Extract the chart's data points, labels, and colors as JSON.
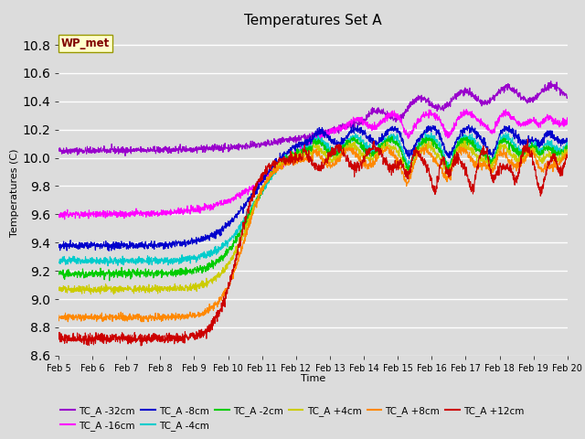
{
  "title": "Temperatures Set A",
  "xlabel": "Time",
  "ylabel": "Temperatures (C)",
  "ylim": [
    8.6,
    10.9
  ],
  "background_color": "#dcdcdc",
  "plot_bg_color": "#dcdcdc",
  "grid_color": "#ffffff",
  "wp_met_label": "WP_met",
  "wp_met_color": "#800000",
  "wp_met_bg": "#ffffcc",
  "wp_met_border": "#999900",
  "series": [
    {
      "label": "TC_A -32cm",
      "color": "#9900cc"
    },
    {
      "label": "TC_A -16cm",
      "color": "#ff00ff"
    },
    {
      "label": "TC_A -8cm",
      "color": "#0000cc"
    },
    {
      "label": "TC_A -4cm",
      "color": "#00cccc"
    },
    {
      "label": "TC_A -2cm",
      "color": "#00cc00"
    },
    {
      "label": "TC_A +4cm",
      "color": "#cccc00"
    },
    {
      "label": "TC_A +8cm",
      "color": "#ff8800"
    },
    {
      "label": "TC_A +12cm",
      "color": "#cc0000"
    }
  ],
  "x_tick_labels": [
    "Feb 5",
    "Feb 6",
    "Feb 7",
    "Feb 8",
    "Feb 9",
    "Feb 10",
    "Feb 11",
    "Feb 12",
    "Feb 13",
    "Feb 14",
    "Feb 15",
    "Feb 16",
    "Feb 17",
    "Feb 18",
    "Feb 19",
    "Feb 20"
  ],
  "n_points": 2000,
  "figsize": [
    6.4,
    4.8
  ],
  "dpi": 100
}
